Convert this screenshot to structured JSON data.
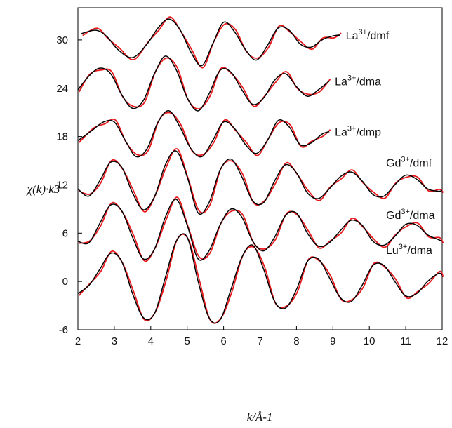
{
  "chart_data": {
    "type": "line",
    "title": "",
    "xlabel": "k/Å-1",
    "ylabel": "χ(k)·k3",
    "xlim": [
      2,
      12
    ],
    "ylim": [
      -6,
      34
    ],
    "xticks": [
      "2",
      "3",
      "4",
      "5",
      "6",
      "7",
      "8",
      "9",
      "10",
      "11",
      "12"
    ],
    "yticks": [
      "-6",
      "0",
      "6",
      "12",
      "18",
      "24",
      "30"
    ],
    "grid": false,
    "legend": "none",
    "colors": {
      "experiment": "#000000",
      "fit": "#e8191c"
    },
    "series": [
      {
        "name": "La3+/dmf",
        "x": [
          2.1,
          2.5,
          2.8,
          3.1,
          3.5,
          3.9,
          4.2,
          4.5,
          4.8,
          5.1,
          5.4,
          5.7,
          6.0,
          6.3,
          6.6,
          6.9,
          7.2,
          7.5,
          7.8,
          8.1,
          8.4,
          8.7,
          9.0,
          9.2
        ],
        "y": [
          30.8,
          31.2,
          30.4,
          28.8,
          27.8,
          29.5,
          31.5,
          32.6,
          31.3,
          28.5,
          26.8,
          29.5,
          32.2,
          31.0,
          28.8,
          27.5,
          29.3,
          31.5,
          31.2,
          29.5,
          29.1,
          30.0,
          30.5,
          30.6
        ]
      },
      {
        "name": "La3+/dma",
        "x": [
          2.0,
          2.3,
          2.6,
          2.9,
          3.2,
          3.5,
          3.8,
          4.1,
          4.4,
          4.7,
          5.0,
          5.3,
          5.6,
          5.9,
          6.2,
          6.5,
          6.8,
          7.1,
          7.4,
          7.7,
          8.0,
          8.3,
          8.6,
          8.9
        ],
        "y": [
          23.8,
          25.5,
          26.5,
          25.8,
          23.2,
          21.5,
          22.5,
          25.8,
          28.0,
          26.3,
          22.8,
          21.2,
          23.3,
          26.2,
          26.0,
          23.8,
          22.0,
          22.8,
          25.0,
          25.8,
          24.2,
          23.0,
          23.8,
          24.9
        ]
      },
      {
        "name": "La3+/dmp",
        "x": [
          2.0,
          2.4,
          2.7,
          3.0,
          3.3,
          3.6,
          3.9,
          4.2,
          4.5,
          4.8,
          5.1,
          5.4,
          5.7,
          6.0,
          6.3,
          6.6,
          6.9,
          7.2,
          7.5,
          7.8,
          8.1,
          8.4,
          8.7,
          8.9
        ],
        "y": [
          17.5,
          18.8,
          19.8,
          19.8,
          17.5,
          15.5,
          16.5,
          19.8,
          21.2,
          19.2,
          16.5,
          15.5,
          17.5,
          19.8,
          19.0,
          17.0,
          15.9,
          17.5,
          20.0,
          19.2,
          17.0,
          17.2,
          18.3,
          18.6
        ]
      },
      {
        "name": "Gd3+/dmf",
        "x": [
          2.0,
          2.3,
          2.6,
          2.9,
          3.2,
          3.5,
          3.8,
          4.1,
          4.4,
          4.7,
          5.0,
          5.3,
          5.6,
          5.9,
          6.2,
          6.5,
          6.8,
          7.1,
          7.4,
          7.7,
          8.0,
          8.3,
          8.6,
          8.9,
          9.2,
          9.5,
          9.8,
          10.1,
          10.4,
          10.7,
          11.0,
          11.3,
          11.6,
          11.9,
          12.0
        ],
        "y": [
          11.5,
          10.6,
          12.5,
          14.8,
          14.2,
          11.0,
          8.9,
          10.5,
          14.5,
          16.2,
          13.0,
          8.5,
          9.8,
          13.8,
          15.2,
          13.0,
          10.0,
          9.8,
          12.5,
          14.5,
          13.5,
          11.0,
          10.3,
          11.5,
          13.0,
          13.6,
          12.5,
          10.8,
          10.6,
          12.0,
          13.2,
          12.7,
          11.5,
          11.2,
          11.3
        ]
      },
      {
        "name": "Gd3+/dma",
        "x": [
          2.0,
          2.3,
          2.6,
          2.9,
          3.2,
          3.5,
          3.8,
          4.1,
          4.4,
          4.7,
          5.0,
          5.3,
          5.6,
          5.9,
          6.2,
          6.5,
          6.8,
          7.1,
          7.4,
          7.7,
          8.0,
          8.3,
          8.6,
          8.9,
          9.2,
          9.5,
          9.8,
          10.1,
          10.4,
          10.7,
          11.0,
          11.3,
          11.6,
          11.9,
          12.0
        ],
        "y": [
          5.0,
          4.8,
          7.2,
          9.5,
          8.8,
          5.5,
          2.8,
          4.0,
          8.0,
          10.2,
          7.0,
          2.8,
          3.8,
          7.0,
          9.0,
          8.0,
          5.0,
          3.8,
          5.5,
          8.2,
          8.5,
          6.0,
          4.4,
          4.8,
          6.3,
          7.6,
          7.0,
          5.0,
          4.5,
          5.6,
          7.1,
          7.0,
          5.8,
          5.2,
          5.0
        ]
      },
      {
        "name": "Lu3+/dma",
        "x": [
          2.0,
          2.3,
          2.6,
          2.9,
          3.2,
          3.5,
          3.8,
          4.1,
          4.4,
          4.7,
          5.0,
          5.3,
          5.6,
          5.9,
          6.2,
          6.5,
          6.8,
          7.1,
          7.4,
          7.7,
          8.0,
          8.3,
          8.6,
          8.9,
          9.2,
          9.5,
          9.8,
          10.1,
          10.4,
          10.7,
          11.0,
          11.3,
          11.6,
          11.9,
          12.0
        ],
        "y": [
          -1.5,
          -0.5,
          1.5,
          3.5,
          2.5,
          -1.5,
          -4.5,
          -4.0,
          0.5,
          5.0,
          5.5,
          0.0,
          -4.5,
          -4.8,
          -1.0,
          3.0,
          4.5,
          1.5,
          -2.5,
          -3.3,
          -1.0,
          2.5,
          2.8,
          0.5,
          -2.0,
          -2.5,
          -0.5,
          2.0,
          2.0,
          0.0,
          -1.8,
          -1.5,
          0.0,
          1.0,
          0.8
        ]
      }
    ]
  }
}
